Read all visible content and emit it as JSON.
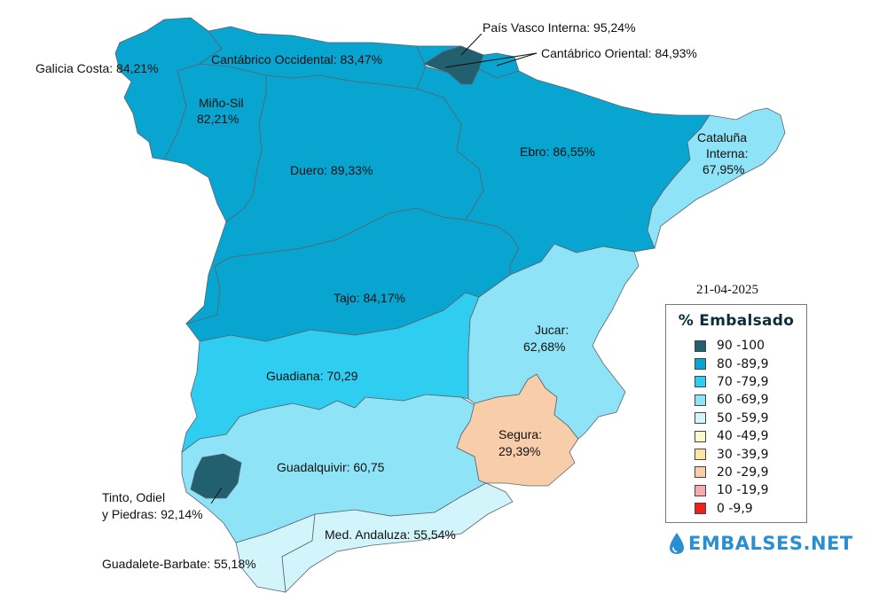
{
  "date": "21-04-2025",
  "legend": {
    "title": "% Embalsado",
    "items": [
      {
        "label": "90 -100",
        "color": "#23606f"
      },
      {
        "label": "80 -89,9",
        "color": "#07a5d0"
      },
      {
        "label": "70 -79,9",
        "color": "#2fcdf0"
      },
      {
        "label": "60 -69,9",
        "color": "#8ee3f6"
      },
      {
        "label": "50 -59,9",
        "color": "#d2f5fc"
      },
      {
        "label": "40 -49,9",
        "color": "#fdfbc9"
      },
      {
        "label": "30 -39,9",
        "color": "#fde6a2"
      },
      {
        "label": "20 -29,9",
        "color": "#f8cdaa"
      },
      {
        "label": "10 -19,9",
        "color": "#f8a9aa"
      },
      {
        "label": "0 -9,9",
        "color": "#f11f1c"
      }
    ]
  },
  "brand": {
    "text": "EMBALSES.NET",
    "icon": "water-drop-icon"
  },
  "regions": {
    "galicia_costa": {
      "label": "Galicia Costa: 84,21%",
      "color": "#07a5d0"
    },
    "cantabrico_occ": {
      "label": "Cantábrico Occidental: 83,47%",
      "color": "#07a5d0"
    },
    "pais_vasco": {
      "label": "País Vasco Interna: 95,24%",
      "color": "#23606f"
    },
    "cantabrico_or": {
      "label": "Cantábrico Oriental: 84,93%",
      "color": "#07a5d0"
    },
    "mino_sil": {
      "label_line1": "Miño-Sil",
      "label_line2": "82,21%",
      "color": "#07a5d0"
    },
    "duero": {
      "label": "Duero: 89,33%",
      "color": "#07a5d0"
    },
    "ebro": {
      "label": "Ebro: 86,55%",
      "color": "#07a5d0"
    },
    "cataluna": {
      "label_line1": "Cataluña",
      "label_line2": "Interna:",
      "label_line3": "67,95%",
      "color": "#8ee3f6"
    },
    "tajo": {
      "label": "Tajo: 84,17%",
      "color": "#07a5d0"
    },
    "jucar": {
      "label_line1": "Jucar:",
      "label_line2": "62,68%",
      "color": "#8ee3f6"
    },
    "guadiana": {
      "label": "Guadiana: 70,29",
      "color": "#2fcdf0"
    },
    "segura": {
      "label_line1": "Segura:",
      "label_line2": "29,39%",
      "color": "#f8cdaa"
    },
    "guadalquivir": {
      "label": "Guadalquivir: 60,75",
      "color": "#8ee3f6"
    },
    "tinto": {
      "label_line1": "Tinto, Odiel",
      "label_line2": "y Piedras: 92,14%",
      "color": "#23606f"
    },
    "med_andaluza": {
      "label": "Med. Andaluza: 55,54%",
      "color": "#d2f5fc"
    },
    "guadalete": {
      "label": "Guadalete-Barbate: 55,18%",
      "color": "#d2f5fc"
    }
  }
}
